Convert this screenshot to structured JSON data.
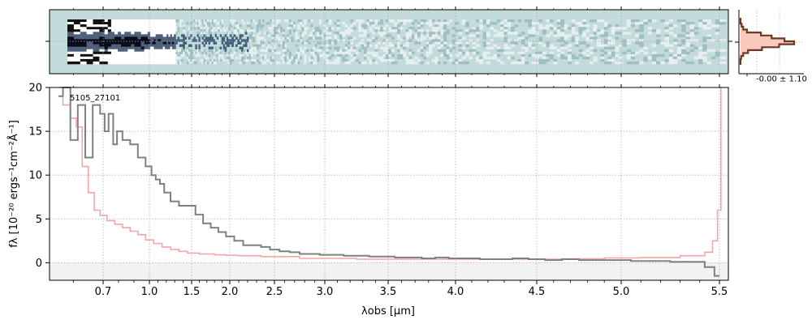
{
  "chart_data": [
    {
      "type": "heatmap",
      "panel": "spectrum-2d",
      "x_tick_positions": [
        0.7,
        1.0,
        1.5,
        2.0,
        2.5,
        3.0,
        3.5,
        4.0,
        4.5,
        5.0,
        5.5
      ],
      "grid": true
    },
    {
      "type": "line",
      "panel": "spatial-profile",
      "annotation": "-0.00 ± 1.10",
      "profile_x": [
        0.0,
        0.0,
        0.02,
        0.05,
        0.12,
        0.38,
        0.58,
        0.82,
        1.0,
        0.72,
        0.4,
        0.14,
        0.05,
        0.01,
        0.0,
        0.0
      ],
      "grid": true
    },
    {
      "type": "line",
      "panel": "spectrum-1d",
      "label": "5105_27101",
      "xlabel": "λobs [μm]",
      "ylabel": "fλ [10⁻²⁰ ergs⁻¹cm⁻²Å⁻¹]",
      "xlim": [
        0.52,
        5.53
      ],
      "ylim": [
        -2,
        20
      ],
      "x_ticks": [
        0.7,
        1.0,
        1.5,
        2.0,
        2.5,
        3.0,
        3.5,
        4.0,
        4.5,
        5.0,
        5.5
      ],
      "x_tick_labels": [
        "0.7",
        "1.0",
        "1.5",
        "2.0",
        "2.5",
        "3.0",
        "3.5",
        "4.0",
        "4.5",
        "5.0",
        "5.5"
      ],
      "y_ticks": [
        0,
        5,
        10,
        15,
        20
      ],
      "y_tick_labels": [
        "0",
        "5",
        "10",
        "15",
        "20"
      ],
      "grid": true,
      "series": [
        {
          "color": "#808080",
          "x": [
            0.55,
            0.58,
            0.6,
            0.63,
            0.65,
            0.68,
            0.7,
            0.72,
            0.75,
            0.78,
            0.8,
            0.85,
            0.9,
            0.95,
            1.0,
            1.05,
            1.1,
            1.15,
            1.2,
            1.3,
            1.4,
            1.5,
            1.6,
            1.7,
            1.8,
            1.9,
            2.0,
            2.1,
            2.2,
            2.3,
            2.4,
            2.5,
            2.6,
            2.7,
            2.8,
            2.9,
            3.0,
            3.1,
            3.2,
            3.3,
            3.4,
            3.5,
            3.6,
            3.7,
            3.8,
            3.9,
            4.0,
            4.1,
            4.2,
            4.3,
            4.4,
            4.5,
            4.6,
            4.7,
            4.8,
            4.9,
            5.0,
            5.1,
            5.2,
            5.3,
            5.4,
            5.45,
            5.5
          ],
          "y": [
            19.0,
            21.0,
            14.0,
            18.0,
            12.0,
            18.0,
            17.0,
            15.0,
            17.0,
            13.5,
            15.0,
            14.0,
            13.5,
            12.0,
            11.0,
            10.0,
            9.5,
            9.0,
            8.0,
            7.0,
            6.5,
            6.5,
            5.5,
            4.5,
            4.0,
            3.5,
            3.0,
            2.5,
            2.0,
            2.0,
            1.8,
            1.5,
            1.3,
            1.2,
            1.0,
            1.0,
            0.9,
            0.9,
            0.8,
            0.8,
            0.7,
            0.7,
            0.6,
            0.6,
            0.5,
            0.6,
            0.5,
            0.5,
            0.4,
            0.4,
            0.5,
            0.4,
            0.3,
            0.4,
            0.3,
            0.3,
            0.3,
            0.2,
            0.2,
            0.1,
            0.1,
            -0.5,
            -1.5
          ]
        },
        {
          "color": "#f4a6a6",
          "x": [
            0.55,
            0.58,
            0.6,
            0.62,
            0.64,
            0.66,
            0.68,
            0.7,
            0.75,
            0.8,
            0.85,
            0.9,
            0.95,
            1.0,
            1.1,
            1.2,
            1.3,
            1.4,
            1.5,
            1.7,
            1.9,
            2.0,
            2.2,
            2.5,
            3.0,
            3.5,
            4.0,
            4.5,
            4.8,
            5.0,
            5.2,
            5.4,
            5.45,
            5.48,
            5.5,
            5.51
          ],
          "y": [
            20.0,
            18.0,
            16.5,
            15.5,
            11.0,
            8.0,
            6.0,
            5.4,
            4.8,
            4.4,
            4.0,
            3.6,
            3.2,
            2.6,
            2.2,
            1.8,
            1.5,
            1.3,
            1.1,
            1.0,
            0.9,
            0.85,
            0.8,
            0.7,
            0.5,
            0.4,
            0.4,
            0.4,
            0.45,
            0.55,
            0.6,
            0.8,
            1.2,
            2.5,
            6.0,
            20.0
          ]
        }
      ]
    }
  ]
}
